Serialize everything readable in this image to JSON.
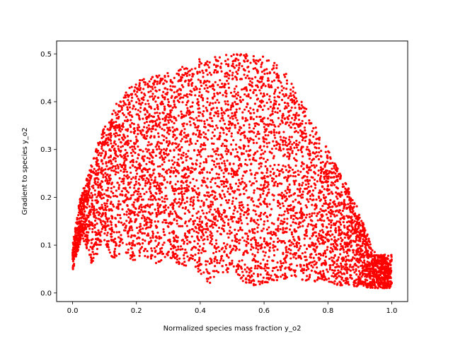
{
  "chart_data": {
    "type": "scatter",
    "title": "",
    "xlabel": "Normalized species mass fraction y_o2",
    "ylabel": "Gradient to species y_o2",
    "xlim": [
      -0.05,
      1.05
    ],
    "ylim": [
      -0.018,
      0.527
    ],
    "xticks": [
      0.0,
      0.2,
      0.4,
      0.6,
      0.8,
      1.0
    ],
    "xtick_labels": [
      "0.0",
      "0.2",
      "0.4",
      "0.6",
      "0.8",
      "1.0"
    ],
    "yticks": [
      0.0,
      0.1,
      0.2,
      0.3,
      0.4,
      0.5
    ],
    "ytick_labels": [
      "0.0",
      "0.1",
      "0.2",
      "0.3",
      "0.4",
      "0.5"
    ],
    "grid": false,
    "legend": "none",
    "series": [
      {
        "color": "#ff0000",
        "marker": "dot",
        "upper_envelope": {
          "x": [
            0.0,
            0.02,
            0.05,
            0.08,
            0.1,
            0.14,
            0.18,
            0.22,
            0.26,
            0.3,
            0.35,
            0.4,
            0.45,
            0.5,
            0.55,
            0.6,
            0.64,
            0.68,
            0.72,
            0.76,
            0.8,
            0.84,
            0.88,
            0.92,
            0.95
          ],
          "y": [
            0.1,
            0.19,
            0.25,
            0.32,
            0.35,
            0.4,
            0.43,
            0.45,
            0.455,
            0.46,
            0.475,
            0.49,
            0.495,
            0.5,
            0.5,
            0.495,
            0.48,
            0.45,
            0.4,
            0.35,
            0.3,
            0.25,
            0.2,
            0.13,
            0.08
          ]
        },
        "lower_envelope": {
          "x": [
            0.0,
            0.03,
            0.06,
            0.1,
            0.13,
            0.16,
            0.19,
            0.22,
            0.26,
            0.3,
            0.33,
            0.37,
            0.41,
            0.43,
            0.46,
            0.49,
            0.52,
            0.55,
            0.6,
            0.65,
            0.7,
            0.75,
            0.8,
            0.85,
            0.9,
            0.95,
            1.0
          ],
          "y": [
            0.045,
            0.12,
            0.06,
            0.11,
            0.06,
            0.09,
            0.06,
            0.08,
            0.06,
            0.075,
            0.06,
            0.055,
            0.035,
            0.01,
            0.03,
            0.045,
            0.035,
            0.008,
            0.02,
            0.028,
            0.028,
            0.025,
            0.02,
            0.015,
            0.012,
            0.01,
            0.01
          ]
        },
        "approx_point_count": 6000
      }
    ],
    "annotations": []
  }
}
